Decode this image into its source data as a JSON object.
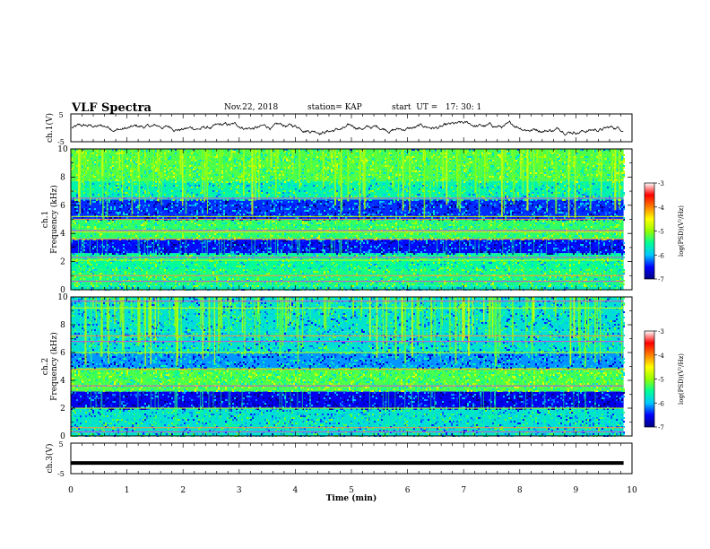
{
  "header": {
    "title": "VLF Spectra",
    "date": "Nov.22, 2018",
    "station": "station= KAP",
    "start": "start  UT =   17: 30: 1"
  },
  "chart_data": [
    {
      "type": "line",
      "name": "ch1-waveform",
      "ylabel": "ch.1(V)",
      "ylim": [
        -5,
        5
      ],
      "yticks": [
        "5",
        "-5"
      ],
      "xlim": [
        0,
        10
      ],
      "note_values": "random-walk waveform between about -3 and 3 V over 0–9.85 min"
    },
    {
      "type": "heatmap",
      "name": "ch1-spectrogram",
      "ylabel": "ch.1\nFrequency (kHz)",
      "ylim": [
        0,
        10
      ],
      "yticks": [
        "0",
        "2",
        "4",
        "6",
        "8",
        "10"
      ],
      "xlim": [
        0,
        10
      ],
      "x_end": 9.85,
      "colorbar": {
        "label": "log(PSD)(V²/Hz)",
        "range": [
          -7,
          -3
        ],
        "ticks": [
          "-3",
          "-4",
          "-5",
          "-6",
          "-7"
        ]
      },
      "bands": [
        {
          "f0": 0.0,
          "f1": 0.3,
          "level": -5.5
        },
        {
          "f0": 0.3,
          "f1": 1.5,
          "level": -5.2
        },
        {
          "f0": 1.5,
          "f1": 2.6,
          "level": -5.3
        },
        {
          "f0": 2.6,
          "f1": 3.6,
          "level": -6.4
        },
        {
          "f0": 3.6,
          "f1": 5.0,
          "level": -5.1
        },
        {
          "f0": 5.0,
          "f1": 6.4,
          "level": -6.3
        },
        {
          "f0": 6.4,
          "f1": 7.7,
          "level": -5.4
        },
        {
          "f0": 7.7,
          "f1": 10.0,
          "level": -5.0
        }
      ],
      "lines_khz": [
        0.6,
        1.0,
        2.1,
        2.3,
        3.6,
        4.1,
        4.2,
        5.0,
        5.2,
        6.5
      ]
    },
    {
      "type": "heatmap",
      "name": "ch2-spectrogram",
      "ylabel": "ch.2\nFrequency (kHz)",
      "ylim": [
        0,
        10
      ],
      "yticks": [
        "0",
        "2",
        "4",
        "6",
        "8",
        "10"
      ],
      "xlim": [
        0,
        10
      ],
      "x_end": 9.85,
      "colorbar": {
        "label": "log(PSD)(V²/Hz)",
        "range": [
          -7,
          -3
        ],
        "ticks": [
          "-3",
          "-4",
          "-5",
          "-6",
          "-7"
        ]
      },
      "bands": [
        {
          "f0": 0.0,
          "f1": 0.6,
          "level": -5.6
        },
        {
          "f0": 0.6,
          "f1": 2.0,
          "level": -5.6
        },
        {
          "f0": 2.0,
          "f1": 3.2,
          "level": -6.5
        },
        {
          "f0": 3.2,
          "f1": 4.9,
          "level": -5.0
        },
        {
          "f0": 4.9,
          "f1": 6.0,
          "level": -6.0
        },
        {
          "f0": 6.0,
          "f1": 7.5,
          "level": -5.6
        },
        {
          "f0": 7.5,
          "f1": 10.0,
          "level": -5.6
        }
      ],
      "lines_khz": [
        0.3,
        0.6,
        2.0,
        3.6,
        4.8,
        6.0,
        6.8,
        7.2,
        9.2,
        9.7
      ]
    },
    {
      "type": "line",
      "name": "ch3-waveform",
      "ylabel": "ch.3(V)",
      "ylim": [
        -5,
        5
      ],
      "yticks": [
        "5",
        "-5"
      ],
      "xlim": [
        0,
        10
      ],
      "x": [
        0,
        9.85
      ],
      "y": [
        -1.5,
        -1.5
      ]
    }
  ],
  "xaxis": {
    "label": "Time (min)",
    "ticks": [
      "0",
      "1",
      "2",
      "3",
      "4",
      "5",
      "6",
      "7",
      "8",
      "9",
      "10"
    ]
  },
  "colors": {
    "colormap": [
      "#000080",
      "#0000ff",
      "#00c8ff",
      "#00ff96",
      "#96ff00",
      "#ffff00",
      "#ff8000",
      "#ff0000",
      "#ffffff"
    ]
  }
}
